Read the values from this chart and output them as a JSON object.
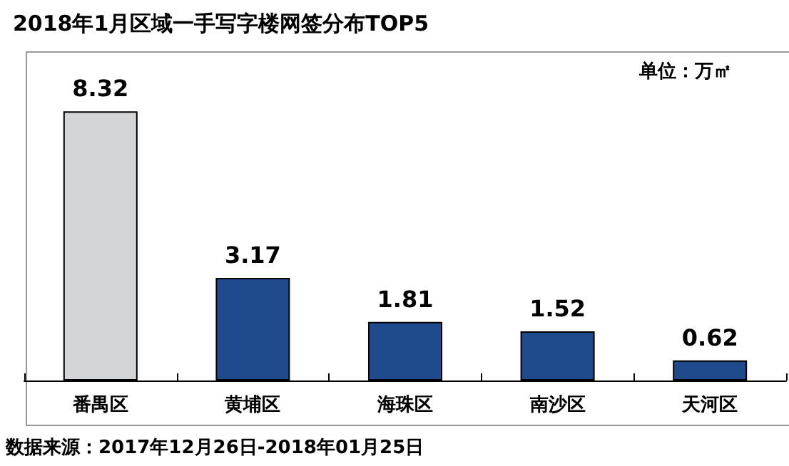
{
  "chart_data": {
    "type": "bar",
    "title": "2018年1月区域一手写字楼网签分布TOP5",
    "categories": [
      "番禺区",
      "黄埔区",
      "海珠区",
      "南沙区",
      "天河区"
    ],
    "values": [
      8.32,
      3.17,
      1.81,
      1.52,
      0.62
    ],
    "colors": [
      "#d3d5d6",
      "#1f4a8c",
      "#1f4a8c",
      "#1f4a8c",
      "#1f4a8c"
    ],
    "data_labels": true,
    "annotations": [
      "单位：万㎡",
      "数据来源：2017年12月26日-2018年01月25日"
    ]
  }
}
